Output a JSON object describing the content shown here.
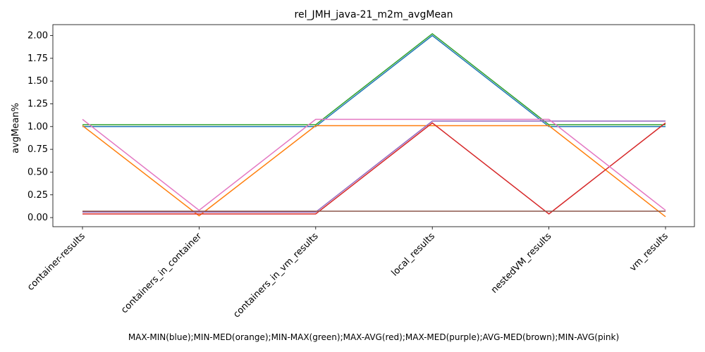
{
  "chart_data": {
    "type": "line",
    "title": "rel_JMH_java-21_m2m_avgMean",
    "xlabel": "MAX-MIN(blue);MIN-MED(orange);MIN-MAX(green);MAX-AVG(red);MAX-MED(purple);AVG-MED(brown);MIN-AVG(pink)",
    "ylabel": "avgMean%",
    "categories": [
      "container-results",
      "containers_in_container",
      "containers_in_vm_results",
      "local_results",
      "nestedVM_results",
      "vm_results"
    ],
    "ylim": [
      -0.1,
      2.12
    ],
    "yticks": [
      "0.00",
      "0.25",
      "0.50",
      "0.75",
      "1.00",
      "1.25",
      "1.50",
      "1.75",
      "2.00"
    ],
    "grid": false,
    "series": [
      {
        "color": "#1f77b4",
        "values": [
          1.0,
          1.0,
          1.0,
          2.0,
          1.0,
          1.0
        ]
      },
      {
        "color": "#ff7f0e",
        "values": [
          1.01,
          0.02,
          1.01,
          1.01,
          1.01,
          0.01
        ]
      },
      {
        "color": "#2ca02c",
        "values": [
          1.02,
          1.02,
          1.02,
          2.02,
          1.02,
          1.02
        ]
      },
      {
        "color": "#d62728",
        "values": [
          0.04,
          0.04,
          0.04,
          1.04,
          0.04,
          1.04
        ]
      },
      {
        "color": "#9467bd",
        "values": [
          0.06,
          0.06,
          0.06,
          1.06,
          1.06,
          1.06
        ]
      },
      {
        "color": "#8c564b",
        "values": [
          0.07,
          0.07,
          0.07,
          0.07,
          0.07,
          0.07
        ]
      },
      {
        "color": "#e377c2",
        "values": [
          1.08,
          0.08,
          1.08,
          1.08,
          1.08,
          0.08
        ]
      }
    ]
  }
}
